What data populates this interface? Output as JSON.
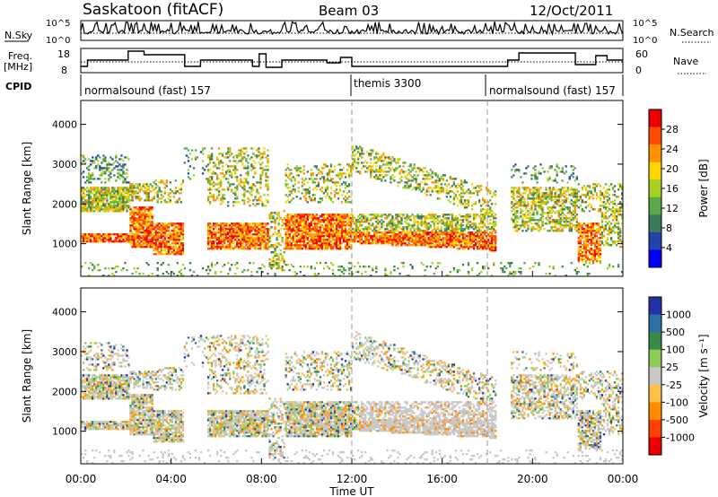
{
  "header": {
    "title": "Saskatoon (fitACF)",
    "beam": "Beam 03",
    "date": "12/Oct/2011"
  },
  "panels": {
    "nsky": {
      "label": "N.Sky",
      "ticks": [
        "10^5",
        "10^0"
      ]
    },
    "freq": {
      "label_line1": "Freq.",
      "label_line2": "[MHz]",
      "ticks": [
        "18",
        "8"
      ]
    },
    "nsearch": {
      "label": "N.Search",
      "ticks": [
        "10^5",
        "10^0"
      ]
    },
    "nave": {
      "label": "Nave",
      "ticks": [
        "60",
        "0"
      ]
    },
    "cpid": {
      "label": "CPID",
      "segments": [
        {
          "label": "normalsound (fast) 157",
          "start_hour": 0,
          "end_hour": 12
        },
        {
          "label": "themis 3300",
          "start_hour": 12,
          "end_hour": 18
        },
        {
          "label": "normalsound (fast) 157",
          "start_hour": 18,
          "end_hour": 24
        }
      ]
    }
  },
  "chart_data": [
    {
      "type": "heatmap",
      "quantity": "power",
      "ylabel": "Slant Range [km]",
      "ylim": [
        180,
        4600
      ],
      "yticks": [
        "1000",
        "2000",
        "3000",
        "4000"
      ],
      "colorbar": {
        "label": "Power [dB]",
        "ticks": [
          "4",
          "8",
          "12",
          "16",
          "20",
          "24",
          "28"
        ]
      },
      "vlines_hours": [
        12,
        18
      ]
    },
    {
      "type": "heatmap",
      "quantity": "velocity",
      "ylabel": "Slant Range [km]",
      "ylim": [
        180,
        4600
      ],
      "yticks": [
        "1000",
        "2000",
        "3000",
        "4000"
      ],
      "colorbar": {
        "label": "Velocity [m s⁻¹]",
        "ticks": [
          "1000",
          "500",
          "100",
          "25",
          "-25",
          "-100",
          "-500",
          "-1000"
        ]
      },
      "vlines_hours": [
        12,
        18
      ]
    }
  ],
  "xaxis": {
    "label": "Time UT",
    "ticks": [
      "00:00",
      "04:00",
      "08:00",
      "12:00",
      "16:00",
      "20:00",
      "00:00"
    ],
    "xlim_hours": [
      0,
      24
    ]
  },
  "colors": {
    "power_scale": [
      "#0000ff",
      "#2244aa",
      "#3a7a5a",
      "#5aa84a",
      "#a8d020",
      "#ffd400",
      "#ff9000",
      "#ff4a00",
      "#ee0000"
    ],
    "velocity_scale": [
      "#2233aa",
      "#2e6fa8",
      "#3a8a4a",
      "#8fcc55",
      "#c8c8c8",
      "#ffc04a",
      "#ff8c00",
      "#ff4000",
      "#ee0000"
    ]
  }
}
